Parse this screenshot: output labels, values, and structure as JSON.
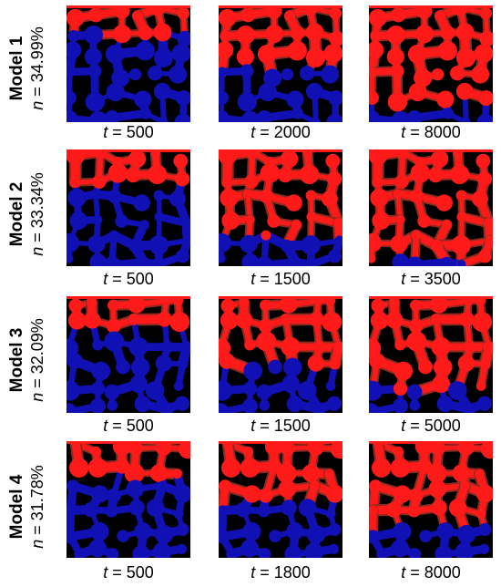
{
  "figure": {
    "rows": [
      {
        "model": "Model 1",
        "porosity_var": "n",
        "porosity_value": " = 34.99%",
        "panels": [
          {
            "time_var": "t",
            "time_value": " = 500",
            "fill_fraction": 0.25
          },
          {
            "time_var": "t",
            "time_value": " = 2000",
            "fill_fraction": 0.55
          },
          {
            "time_var": "t",
            "time_value": " = 8000",
            "fill_fraction": 0.85
          }
        ]
      },
      {
        "model": "Model 2",
        "porosity_var": "n",
        "porosity_value": " = 33.34%",
        "panels": [
          {
            "time_var": "t",
            "time_value": " = 500",
            "fill_fraction": 0.3
          },
          {
            "time_var": "t",
            "time_value": " = 1500",
            "fill_fraction": 0.75
          },
          {
            "time_var": "t",
            "time_value": " = 3500",
            "fill_fraction": 0.95
          }
        ]
      },
      {
        "model": "Model 3",
        "porosity_var": "n",
        "porosity_value": " = 32.09%",
        "panels": [
          {
            "time_var": "t",
            "time_value": " = 500",
            "fill_fraction": 0.3
          },
          {
            "time_var": "t",
            "time_value": " = 1500",
            "fill_fraction": 0.6
          },
          {
            "time_var": "t",
            "time_value": " = 5000",
            "fill_fraction": 0.8
          }
        ]
      },
      {
        "model": "Model 4",
        "porosity_var": "n",
        "porosity_value": " = 31.78%",
        "panels": [
          {
            "time_var": "t",
            "time_value": " = 500",
            "fill_fraction": 0.3
          },
          {
            "time_var": "t",
            "time_value": " = 1800",
            "fill_fraction": 0.5
          },
          {
            "time_var": "t",
            "time_value": " = 8000",
            "fill_fraction": 0.75
          }
        ]
      }
    ],
    "colors": {
      "background": "#ffffff",
      "solid": "#000000",
      "invading_fluid": "#ff1a1a",
      "interface": "#8b2a1e",
      "resident_fluid": "#1010b4"
    }
  }
}
